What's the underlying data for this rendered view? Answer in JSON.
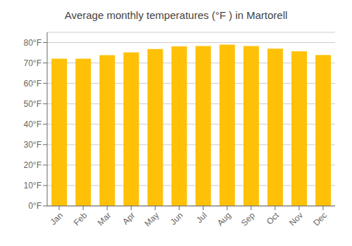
{
  "chart_data": {
    "type": "bar",
    "title": "Average monthly temperatures (°F ) in Martorell",
    "categories": [
      "Jan",
      "Feb",
      "Mar",
      "Apr",
      "May",
      "Jun",
      "Jul",
      "Aug",
      "Sep",
      "Oct",
      "Nov",
      "Dec"
    ],
    "values": [
      72.1,
      72.1,
      73.8,
      75.2,
      76.8,
      78.1,
      78.3,
      79.0,
      78.3,
      77.0,
      75.7,
      73.9
    ],
    "color": "#FFC107",
    "ylim": [
      0,
      85
    ],
    "yticks": [
      {
        "value": 0,
        "label": "0°F"
      },
      {
        "value": 10,
        "label": "10°F"
      },
      {
        "value": 20,
        "label": "20°F"
      },
      {
        "value": 30,
        "label": "30°F"
      },
      {
        "value": 40,
        "label": "40°F"
      },
      {
        "value": 50,
        "label": "50°F"
      },
      {
        "value": 60,
        "label": "60°F"
      },
      {
        "value": 70,
        "label": "70°F"
      },
      {
        "value": 80,
        "label": "80°F"
      }
    ],
    "grid": true
  }
}
